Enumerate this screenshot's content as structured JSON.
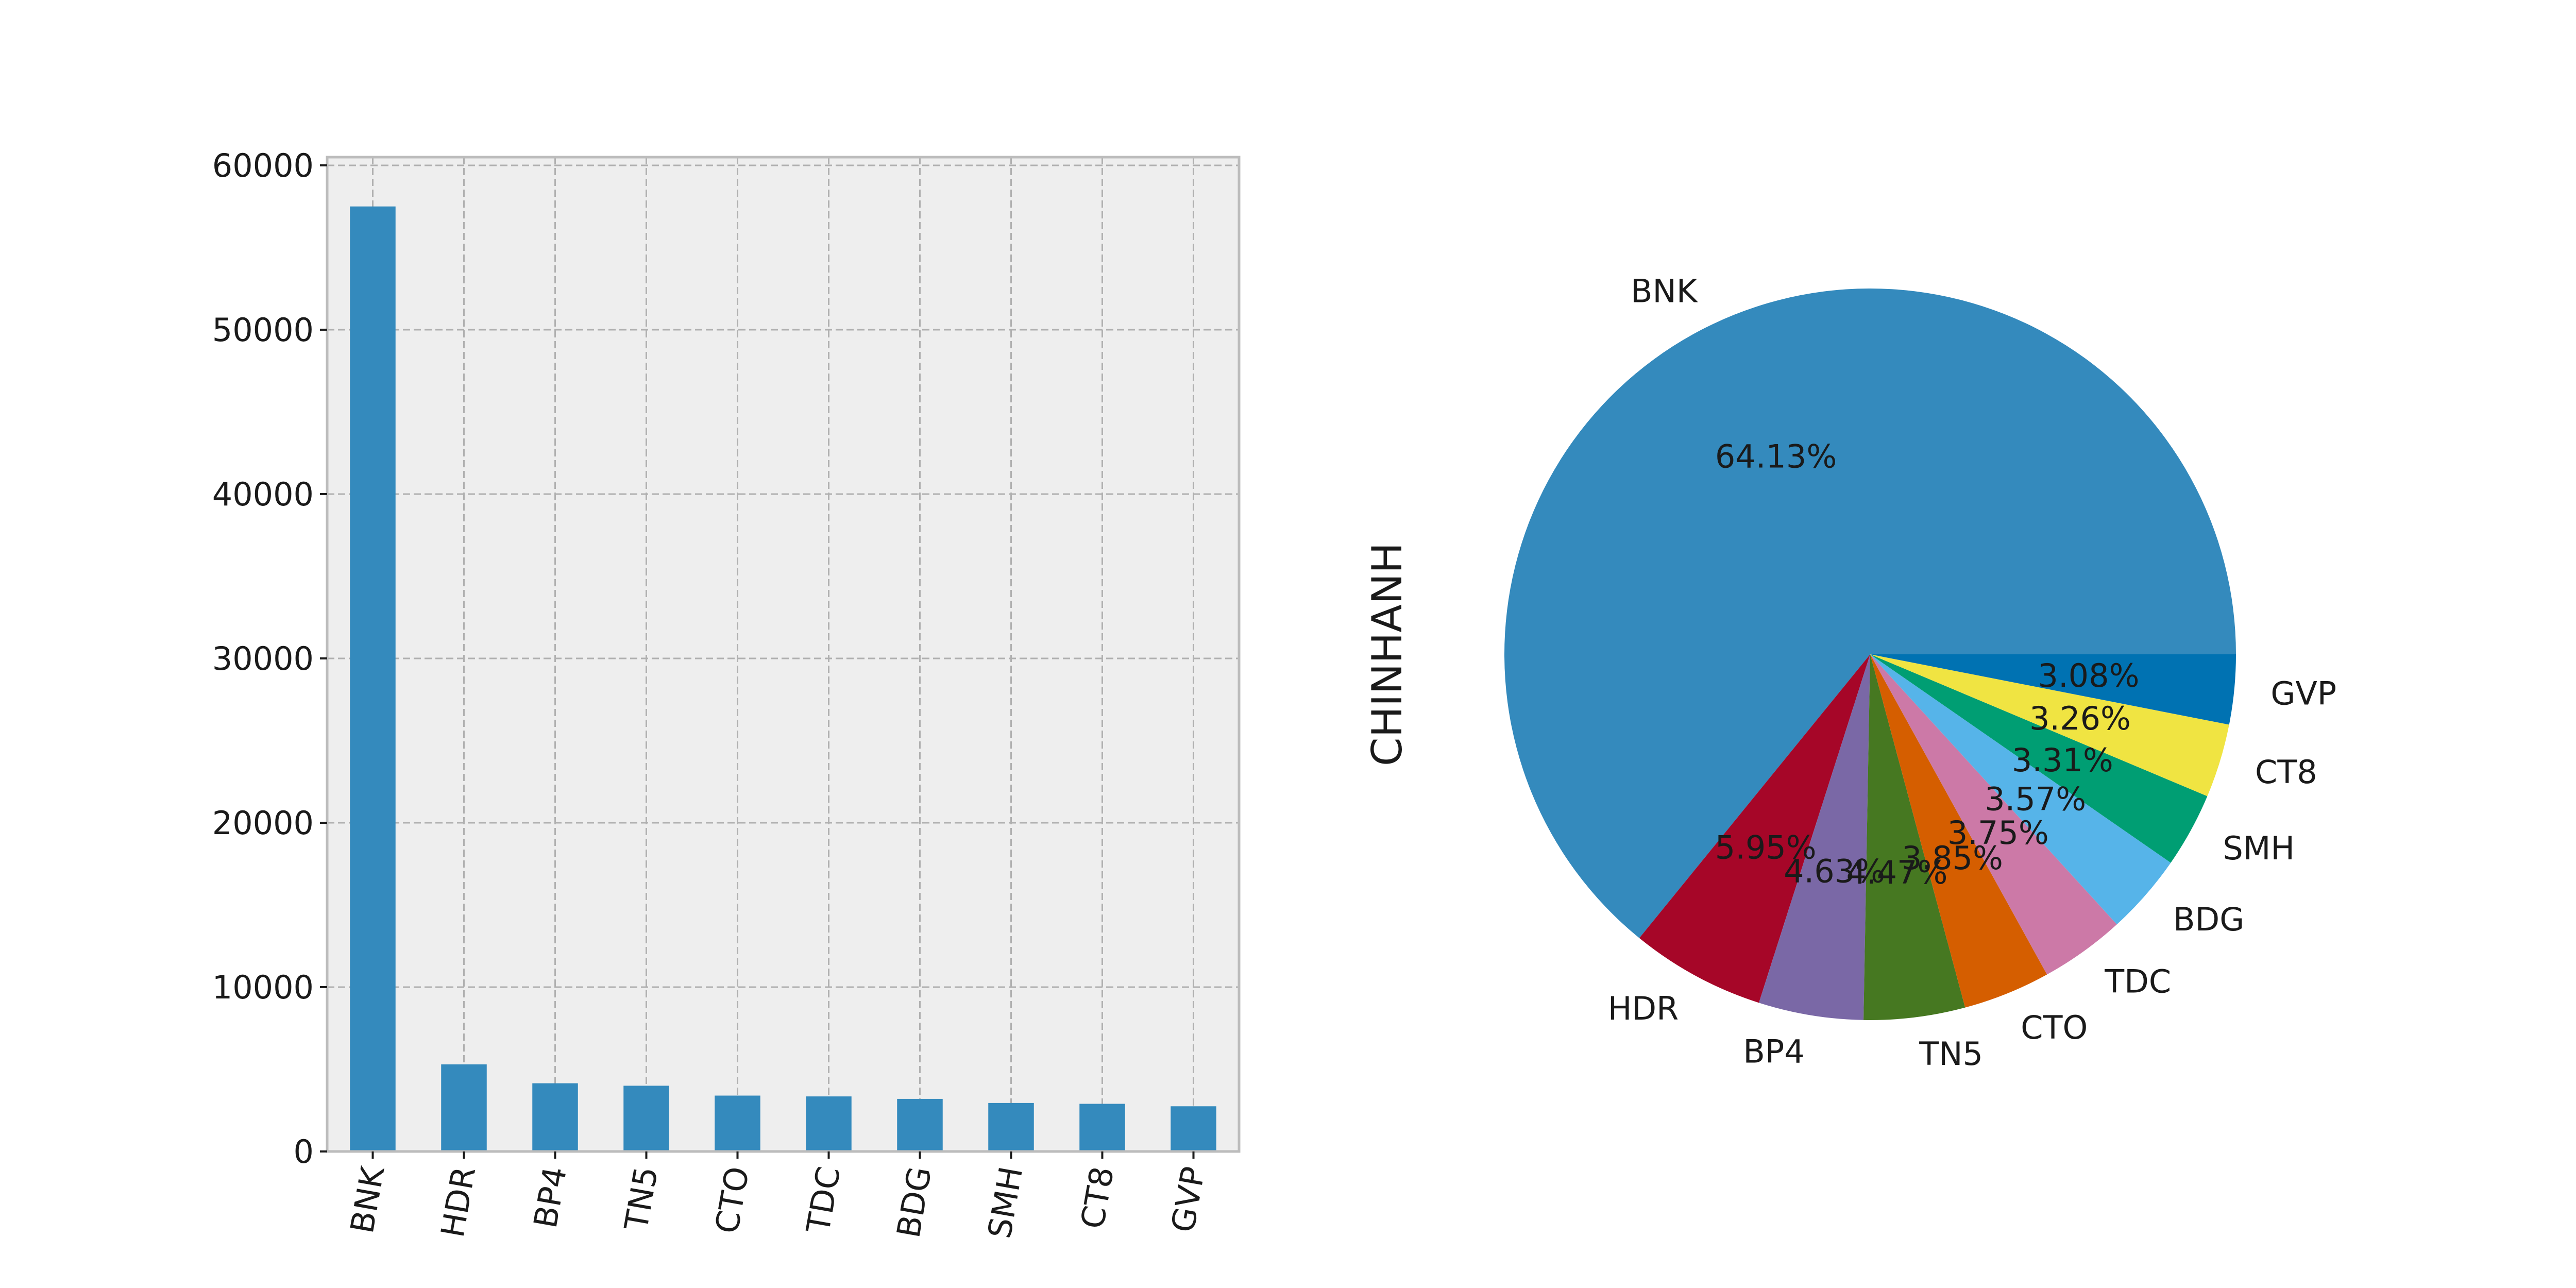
{
  "colors": {
    "axes_background": "#eeeeee",
    "bar": "#348abd",
    "pie": [
      "#348abd",
      "#a60628",
      "#7a68a6",
      "#467821",
      "#d55e00",
      "#cc79a7",
      "#56b4e9",
      "#009e73",
      "#f0e442",
      "#0072b2"
    ]
  },
  "chart_data": [
    {
      "type": "bar",
      "categories": [
        "BNK",
        "HDR",
        "BP4",
        "TN5",
        "CTO",
        "TDC",
        "BDG",
        "SMH",
        "CT8",
        "GVP"
      ],
      "values": [
        57500,
        5300,
        4150,
        4000,
        3400,
        3350,
        3200,
        2950,
        2900,
        2750
      ],
      "ylim": [
        0,
        60500
      ],
      "yticks": [
        0,
        10000,
        20000,
        30000,
        40000,
        50000,
        60000
      ],
      "grid": true,
      "xlabel": "",
      "ylabel": ""
    },
    {
      "type": "pie",
      "ylabel": "CHINHANH",
      "labels": [
        "BNK",
        "HDR",
        "BP4",
        "TN5",
        "CTO",
        "TDC",
        "BDG",
        "SMH",
        "CT8",
        "GVP"
      ],
      "values": [
        64.13,
        5.95,
        4.63,
        4.47,
        3.85,
        3.75,
        3.57,
        3.31,
        3.26,
        3.08
      ],
      "pct_labels": [
        "64.13%",
        "5.95%",
        "4.63%",
        "4.47%",
        "3.85%",
        "3.75%",
        "3.57%",
        "3.31%",
        "3.26%",
        "3.08%"
      ],
      "start_angle_deg": 0,
      "direction": "counterclockwise"
    }
  ]
}
